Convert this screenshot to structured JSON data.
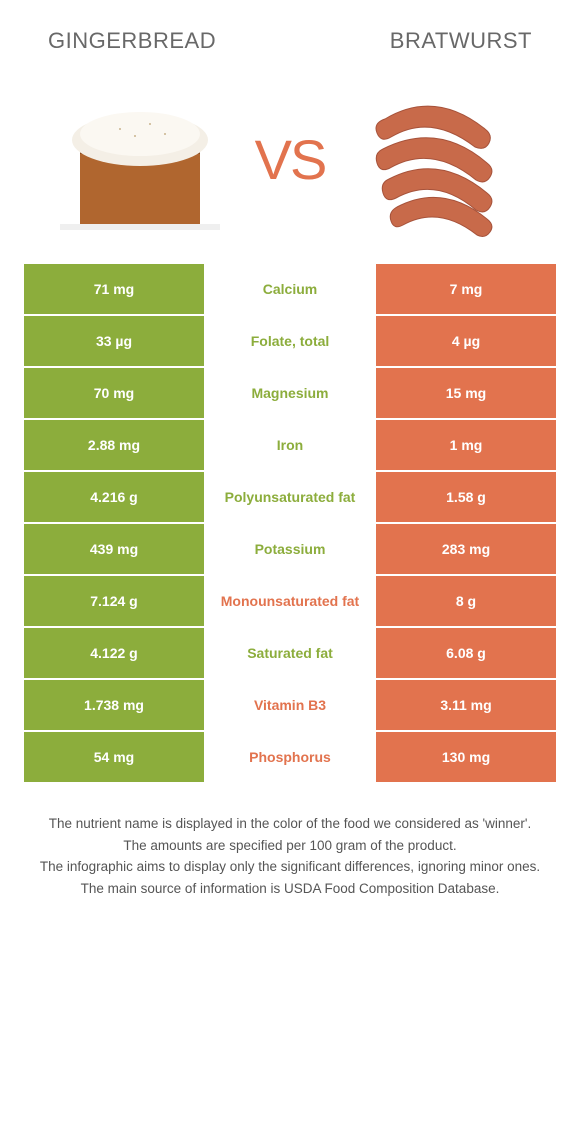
{
  "colors": {
    "left_bg": "#8cad3c",
    "right_bg": "#e2734e",
    "left_text": "#8cad3c",
    "right_text": "#e2734e",
    "vs": "#e2734e",
    "title": "#686868"
  },
  "foods": {
    "left": "GINGERBREAD",
    "right": "BRATWURST"
  },
  "vs_label": "VS",
  "rows": [
    {
      "left": "71 mg",
      "label": "Calcium",
      "right": "7 mg",
      "winner": "left"
    },
    {
      "left": "33 µg",
      "label": "Folate, total",
      "right": "4 µg",
      "winner": "left"
    },
    {
      "left": "70 mg",
      "label": "Magnesium",
      "right": "15 mg",
      "winner": "left"
    },
    {
      "left": "2.88 mg",
      "label": "Iron",
      "right": "1 mg",
      "winner": "left"
    },
    {
      "left": "4.216 g",
      "label": "Polyunsaturated fat",
      "right": "1.58 g",
      "winner": "left"
    },
    {
      "left": "439 mg",
      "label": "Potassium",
      "right": "283 mg",
      "winner": "left"
    },
    {
      "left": "7.124 g",
      "label": "Monounsaturated fat",
      "right": "8 g",
      "winner": "right"
    },
    {
      "left": "4.122 g",
      "label": "Saturated fat",
      "right": "6.08 g",
      "winner": "left"
    },
    {
      "left": "1.738 mg",
      "label": "Vitamin B3",
      "right": "3.11 mg",
      "winner": "right"
    },
    {
      "left": "54 mg",
      "label": "Phosphorus",
      "right": "130 mg",
      "winner": "right"
    }
  ],
  "footnotes": [
    "The nutrient name is displayed in the color of the food we considered as 'winner'.",
    "The amounts are specified per 100 gram of the product.",
    "The infographic aims to display only the significant differences, ignoring minor ones.",
    "The main source of information is USDA Food Composition Database."
  ]
}
